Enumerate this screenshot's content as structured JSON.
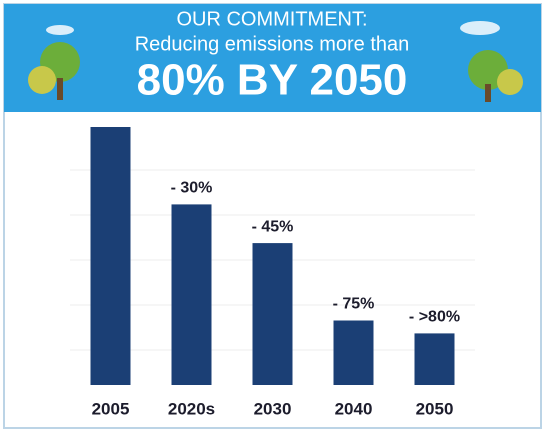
{
  "chart_data": {
    "type": "bar",
    "title": "OUR COMMITMENT:",
    "subtitle": "Reducing emissions more than",
    "headline": "80% BY 2050",
    "categories": [
      "2005",
      "2020s",
      "2030",
      "2040",
      "2050"
    ],
    "values": [
      0,
      -30,
      -45,
      -75,
      -80
    ],
    "value_labels": [
      null,
      "- 30%",
      "- 45%",
      "- 75%",
      "- >80%"
    ],
    "color": "#1b3f75",
    "ylim": [
      -100,
      0
    ]
  }
}
